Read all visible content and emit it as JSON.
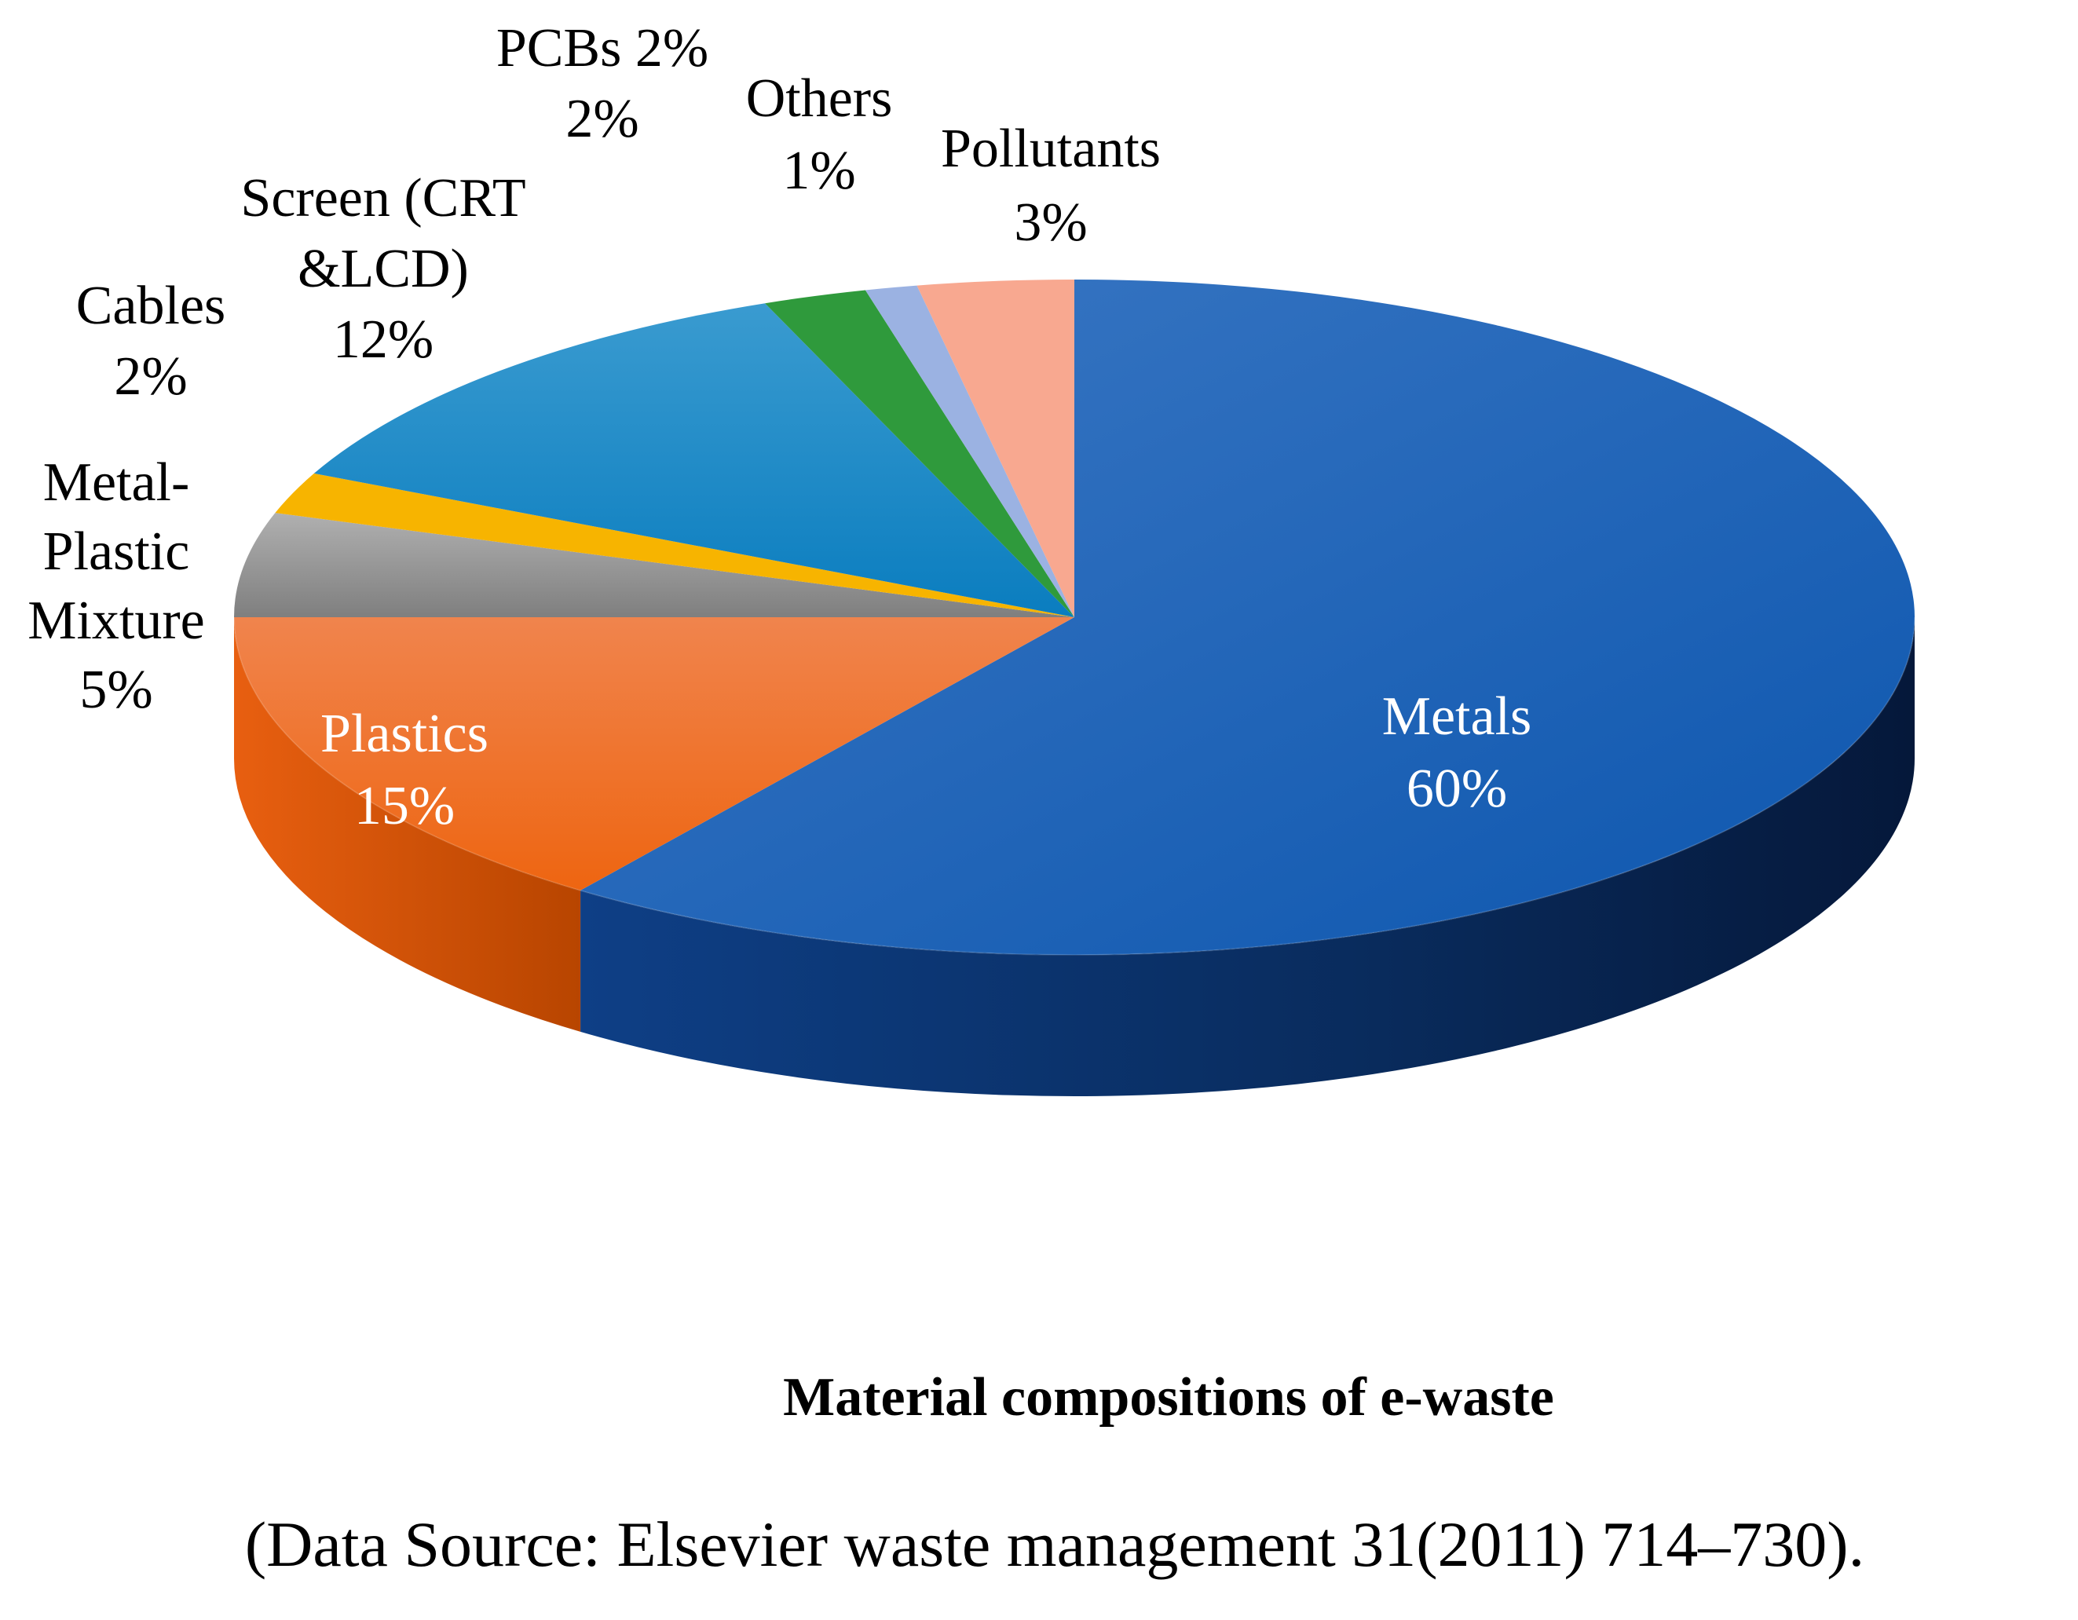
{
  "chart_data": {
    "type": "pie",
    "style": "3d",
    "title": "Material compositions of e-waste",
    "source": "(Data Source: Elsevier waste management 31(2011) 714–730).",
    "slices": [
      {
        "label_lines": [
          "Metals",
          "60%"
        ],
        "value": 60,
        "color": "#1a62b8",
        "label_color": "#ffffff"
      },
      {
        "label_lines": [
          "Plastics",
          "15%"
        ],
        "value": 15,
        "color": "#ef6a1e",
        "label_color": "#ffffff"
      },
      {
        "label_lines": [
          "Metal-",
          "Plastic",
          "Mixture",
          "5%"
        ],
        "value": 5,
        "color": "#9a9a9a",
        "label_color": "#000000"
      },
      {
        "label_lines": [
          "Cables",
          "2%"
        ],
        "value": 2,
        "color": "#f7b400",
        "label_color": "#000000"
      },
      {
        "label_lines": [
          "Screen (CRT",
          "&LCD)",
          "12%"
        ],
        "value": 12,
        "color": "#1b8ac6",
        "label_color": "#000000"
      },
      {
        "label_lines": [
          "PCBs 2%",
          "2%"
        ],
        "value": 2,
        "color": "#2f9a3c",
        "label_color": "#000000"
      },
      {
        "label_lines": [
          "Others",
          "1%"
        ],
        "value": 1,
        "color": "#9bb2e2",
        "label_color": "#000000"
      },
      {
        "label_lines": [
          "Pollutants",
          "3%"
        ],
        "value": 3,
        "color": "#f8a890",
        "label_color": "#000000"
      }
    ]
  }
}
